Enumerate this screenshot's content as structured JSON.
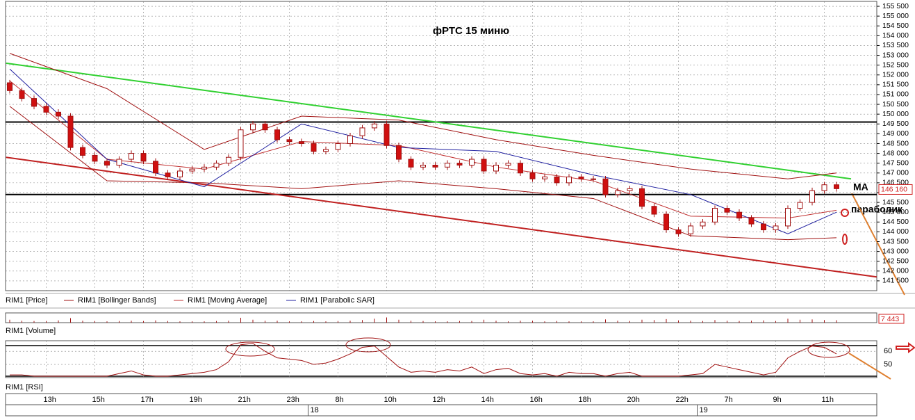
{
  "chart_data": {
    "type": "candlestick",
    "title": "фРТС   15 миню",
    "legend": [
      "RIM1 [Price]",
      "RIM1 [Bollinger Bands]",
      "RIM1 [Moving Average]",
      "RIM1 [Parabolic SAR]"
    ],
    "up_color": "#ffffff",
    "down_color": "#d01010",
    "edge_color": "#a01010",
    "candles": [
      [
        151600,
        151750,
        151050,
        151200
      ],
      [
        151200,
        151350,
        150650,
        150800
      ],
      [
        150800,
        150950,
        150250,
        150400
      ],
      [
        150400,
        150550,
        149950,
        150100
      ],
      [
        150100,
        150250,
        149750,
        149900
      ],
      [
        149900,
        150050,
        148150,
        148300
      ],
      [
        148300,
        148450,
        147750,
        147900
      ],
      [
        147900,
        148050,
        147450,
        147600
      ],
      [
        147600,
        147750,
        147250,
        147400
      ],
      [
        147400,
        147850,
        147250,
        147700
      ],
      [
        147700,
        148150,
        147550,
        148000
      ],
      [
        148000,
        148150,
        147450,
        147600
      ],
      [
        147600,
        147750,
        146850,
        147000
      ],
      [
        147000,
        147150,
        146650,
        146800
      ],
      [
        146800,
        147250,
        146650,
        147100
      ],
      [
        147100,
        147350,
        146950,
        147200
      ],
      [
        147200,
        147450,
        147050,
        147300
      ],
      [
        147300,
        147650,
        147150,
        147500
      ],
      [
        147500,
        147950,
        147350,
        147800
      ],
      [
        147800,
        149350,
        147650,
        149200
      ],
      [
        149200,
        149650,
        149050,
        149500
      ],
      [
        149500,
        149650,
        149050,
        149200
      ],
      [
        149200,
        149350,
        148550,
        148700
      ],
      [
        148700,
        148850,
        148450,
        148600
      ],
      [
        148600,
        148750,
        148350,
        148500
      ],
      [
        148500,
        148650,
        147950,
        148100
      ],
      [
        148100,
        148350,
        147950,
        148200
      ],
      [
        148200,
        148650,
        148050,
        148500
      ],
      [
        148500,
        149050,
        148350,
        148900
      ],
      [
        148900,
        149450,
        148750,
        149300
      ],
      [
        149300,
        149650,
        149150,
        149500
      ],
      [
        149500,
        149650,
        148250,
        148400
      ],
      [
        148400,
        148550,
        147550,
        147700
      ],
      [
        147700,
        147850,
        147150,
        147300
      ],
      [
        147300,
        147550,
        147150,
        147400
      ],
      [
        147400,
        147550,
        147150,
        147300
      ],
      [
        147300,
        147650,
        147150,
        147500
      ],
      [
        147500,
        147650,
        147250,
        147400
      ],
      [
        147400,
        147850,
        147250,
        147700
      ],
      [
        147700,
        147850,
        146950,
        147100
      ],
      [
        147100,
        147550,
        146950,
        147400
      ],
      [
        147400,
        147650,
        147250,
        147500
      ],
      [
        147500,
        147650,
        146850,
        147000
      ],
      [
        147000,
        147150,
        146550,
        146700
      ],
      [
        146700,
        146950,
        146550,
        146800
      ],
      [
        146800,
        146950,
        146350,
        146500
      ],
      [
        146500,
        146950,
        146350,
        146800
      ],
      [
        146800,
        146950,
        146550,
        146700
      ],
      [
        146700,
        146850,
        146550,
        146700
      ],
      [
        146700,
        146850,
        145750,
        145900
      ],
      [
        145900,
        146250,
        145750,
        146100
      ],
      [
        146100,
        146350,
        145950,
        146200
      ],
      [
        146200,
        146350,
        145150,
        145300
      ],
      [
        145300,
        145450,
        144750,
        144900
      ],
      [
        144900,
        145050,
        143950,
        144100
      ],
      [
        144100,
        144250,
        143750,
        143900
      ],
      [
        143900,
        144450,
        143750,
        144300
      ],
      [
        144300,
        144650,
        144150,
        144500
      ],
      [
        144500,
        145350,
        144350,
        145200
      ],
      [
        145200,
        145350,
        144850,
        145000
      ],
      [
        145000,
        145150,
        144550,
        144700
      ],
      [
        144700,
        144850,
        144250,
        144400
      ],
      [
        144400,
        144550,
        143950,
        144100
      ],
      [
        144100,
        144450,
        143950,
        144300
      ],
      [
        144300,
        145350,
        144150,
        145200
      ],
      [
        145200,
        145650,
        145050,
        145500
      ],
      [
        145500,
        146250,
        145350,
        146100
      ],
      [
        146100,
        146550,
        145950,
        146400
      ],
      [
        146400,
        146550,
        146050,
        146200
      ]
    ],
    "indicators": [
      {
        "name": "upper",
        "color": "#a01010",
        "x": [
          0,
          8,
          16,
          24,
          32,
          40,
          48,
          56,
          64,
          68
        ],
        "values": [
          153100,
          151300,
          148200,
          149900,
          149700,
          148700,
          147900,
          147200,
          146700,
          147000
        ]
      },
      {
        "name": "lower",
        "color": "#a01010",
        "x": [
          0,
          8,
          16,
          24,
          32,
          40,
          48,
          56,
          64,
          68
        ],
        "values": [
          150400,
          146600,
          146500,
          146200,
          146600,
          146200,
          145700,
          143800,
          143600,
          143700
        ]
      },
      {
        "name": "ma",
        "color": "#c03030",
        "x": [
          0,
          8,
          16,
          24,
          32,
          40,
          48,
          56,
          64,
          68
        ],
        "values": [
          151700,
          147700,
          147200,
          148600,
          148400,
          147300,
          146600,
          144800,
          144700,
          145100
        ]
      },
      {
        "name": "sar",
        "color": "#2020a0",
        "x": [
          0,
          8,
          16,
          24,
          32,
          40,
          48,
          56,
          64,
          68
        ],
        "values": [
          152300,
          147700,
          146300,
          149500,
          148300,
          148100,
          146900,
          145900,
          143900,
          145000
        ]
      }
    ],
    "trendlines": [
      {
        "color": "#30d030",
        "from": [
          -0.3,
          152600
        ],
        "to": [
          69.2,
          146700
        ]
      },
      {
        "color": "#c02020",
        "from": [
          -0.3,
          147800
        ],
        "to": [
          71.3,
          141700
        ]
      }
    ],
    "levels": [
      149600,
      145900
    ],
    "last_price": {
      "value": 146160,
      "label": "146 160"
    },
    "annotations": [
      "MA",
      "параболик"
    ],
    "ylim": [
      141000,
      155750
    ],
    "yticks": [
      {
        "value": 141500,
        "label": "141 500"
      },
      {
        "value": 142000,
        "label": "142 000"
      },
      {
        "value": 142500,
        "label": "142 500"
      },
      {
        "value": 143000,
        "label": "143 000"
      },
      {
        "value": 143500,
        "label": "143 500"
      },
      {
        "value": 144000,
        "label": "144 000"
      },
      {
        "value": 144500,
        "label": "144 500"
      },
      {
        "value": 145000,
        "label": "145 000"
      },
      {
        "value": 145500,
        "label": "145 500"
      },
      {
        "value": 146000,
        "label": "146 000"
      },
      {
        "value": 146500,
        "label": "146 500"
      },
      {
        "value": 147000,
        "label": "147 000"
      },
      {
        "value": 147500,
        "label": "147 500"
      },
      {
        "value": 148000,
        "label": "148 000"
      },
      {
        "value": 148500,
        "label": "148 500"
      },
      {
        "value": 149000,
        "label": "149 000"
      },
      {
        "value": 149500,
        "label": "149 500"
      },
      {
        "value": 150000,
        "label": "150 000"
      },
      {
        "value": 150500,
        "label": "150 500"
      },
      {
        "value": 151000,
        "label": "151 000"
      },
      {
        "value": 151500,
        "label": "151 500"
      },
      {
        "value": 152000,
        "label": "152 000"
      },
      {
        "value": 152500,
        "label": "152 500"
      },
      {
        "value": 153000,
        "label": "153 000"
      },
      {
        "value": 153500,
        "label": "153 500"
      },
      {
        "value": 154000,
        "label": "154 000"
      },
      {
        "value": 154500,
        "label": "154 500"
      },
      {
        "value": 155000,
        "label": "155 000"
      },
      {
        "value": 155500,
        "label": "155 500"
      }
    ],
    "grid": true,
    "volume": {
      "title": "RIM1 [Volume]",
      "color": "#a01010",
      "ylim": [
        0,
        30000
      ],
      "values": [
        9000,
        6000,
        5000,
        5000,
        7000,
        14000,
        6000,
        5000,
        4000,
        5000,
        6000,
        5000,
        7000,
        5000,
        4000,
        4000,
        4000,
        5000,
        6000,
        15000,
        9000,
        6000,
        6000,
        4000,
        4000,
        5000,
        4000,
        5000,
        6000,
        8000,
        12000,
        16000,
        9000,
        6000,
        5000,
        4000,
        4000,
        5000,
        5000,
        9000,
        6000,
        4000,
        6000,
        6000,
        4000,
        5000,
        4000,
        4000,
        4000,
        10000,
        6000,
        5000,
        9000,
        8000,
        11000,
        7000,
        6000,
        5000,
        8000,
        6000,
        5000,
        6000,
        7000,
        5000,
        12000,
        9000,
        10000,
        8000,
        7443
      ],
      "last_label": "7 443"
    },
    "rsi": {
      "title": "RIM1 [RSI]",
      "color": "#a01010",
      "ylim": [
        41,
        67
      ],
      "yticks": [
        50,
        60
      ],
      "values": [
        42,
        42,
        41,
        41,
        41,
        41,
        41,
        41,
        41,
        43,
        45,
        42,
        41,
        41,
        42,
        43,
        44,
        46,
        52,
        65,
        66,
        60,
        55,
        54,
        53,
        50,
        51,
        54,
        58,
        63,
        64,
        56,
        48,
        44,
        45,
        44,
        46,
        45,
        48,
        43,
        46,
        47,
        43,
        42,
        43,
        41,
        44,
        43,
        43,
        41,
        43,
        44,
        41,
        41,
        41,
        41,
        42,
        43,
        50,
        48,
        46,
        44,
        42,
        44,
        55,
        60,
        64,
        63,
        58
      ]
    },
    "hours": [
      "13h",
      "15h",
      "17h",
      "19h",
      "21h",
      "23h",
      "8h",
      "10h",
      "12h",
      "14h",
      "16h",
      "18h",
      "20h",
      "22h",
      "7h",
      "9h",
      "11h"
    ],
    "days": [
      "18",
      "19"
    ]
  }
}
